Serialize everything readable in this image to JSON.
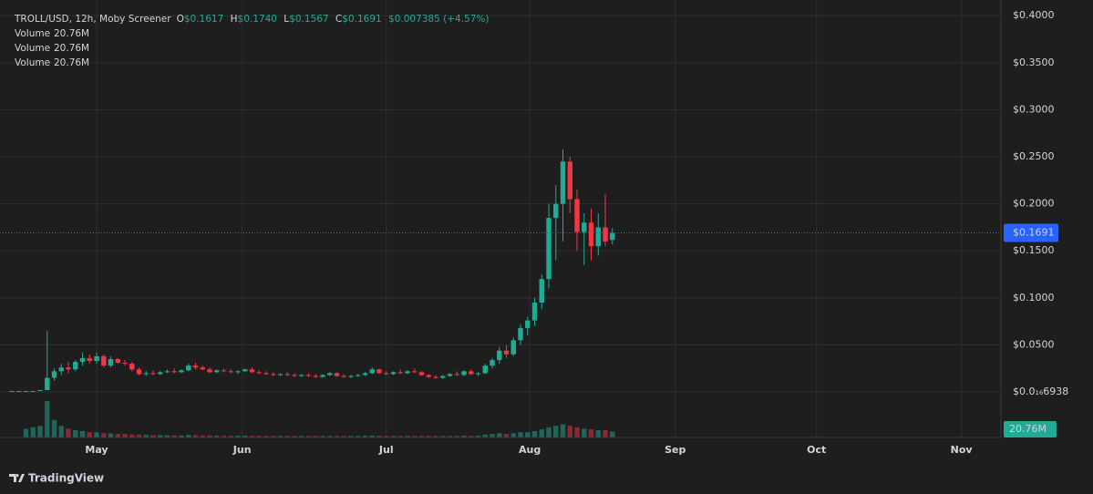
{
  "chart_data": {
    "type": "candlestick",
    "header": {
      "symbol": "TROLL/USD, 12h, Moby Screener",
      "o_label": "O",
      "o_value": "$0.1617",
      "h_label": "H",
      "h_value": "$0.1740",
      "l_label": "L",
      "l_value": "$0.1567",
      "c_label": "C",
      "c_value": "$0.1691",
      "change": "$0.007385 (+4.57%)"
    },
    "legend_rows": [
      {
        "name": "Volume",
        "value": "20.76M"
      },
      {
        "name": "Volume",
        "value": "20.76M"
      },
      {
        "name": "Volume",
        "value": "20.76M"
      }
    ],
    "up_color": "#22ab94",
    "down_color": "#f23645",
    "grid": true,
    "ylim": [
      -0.0484,
      0.4167
    ],
    "yticks": [
      {
        "value": 0.4,
        "label": "$0.4000"
      },
      {
        "value": 0.35,
        "label": "$0.3500"
      },
      {
        "value": 0.3,
        "label": "$0.3000"
      },
      {
        "value": 0.25,
        "label": "$0.2500"
      },
      {
        "value": 0.2,
        "label": "$0.2000"
      },
      {
        "value": 0.15,
        "label": "$0.1500"
      },
      {
        "value": 0.1,
        "label": "$0.1000"
      },
      {
        "value": 0.05,
        "label": "$0.0500"
      },
      {
        "value": 6.938e-17,
        "label": "$0.0₁₆6938"
      }
    ],
    "xlim": [
      -1.68,
      140.0
    ],
    "xticks": [
      {
        "value": 12.0,
        "label": "May"
      },
      {
        "value": 32.6,
        "label": "Jun"
      },
      {
        "value": 53.0,
        "label": "Jul"
      },
      {
        "value": 73.3,
        "label": "Aug"
      },
      {
        "value": 93.9,
        "label": "Sep"
      },
      {
        "value": 113.9,
        "label": "Oct"
      },
      {
        "value": 134.4,
        "label": "Nov"
      }
    ],
    "y2lim": [
      0,
      1500
    ],
    "last_price": {
      "value": 0.1691,
      "label": "$0.1691",
      "color": "#2962ff"
    },
    "last_volume": {
      "value": 20.76,
      "label": "20.76M"
    },
    "open": [
      0.001,
      0.001,
      0.001,
      0.001,
      0.001,
      0.002,
      0.015,
      0.022,
      0.026,
      0.024,
      0.032,
      0.036,
      0.033,
      0.038,
      0.028,
      0.035,
      0.031,
      0.03,
      0.024,
      0.019,
      0.02,
      0.019,
      0.021,
      0.022,
      0.021,
      0.023,
      0.028,
      0.026,
      0.024,
      0.021,
      0.023,
      0.022,
      0.021,
      0.022,
      0.024,
      0.021,
      0.02,
      0.019,
      0.018,
      0.019,
      0.018,
      0.017,
      0.018,
      0.017,
      0.016,
      0.018,
      0.02,
      0.017,
      0.016,
      0.017,
      0.018,
      0.02,
      0.024,
      0.02,
      0.019,
      0.021,
      0.02,
      0.022,
      0.021,
      0.018,
      0.016,
      0.015,
      0.017,
      0.019,
      0.018,
      0.022,
      0.019,
      0.02,
      0.028,
      0.034,
      0.044,
      0.04,
      0.055,
      0.068,
      0.076,
      0.095,
      0.12,
      0.185,
      0.2,
      0.245,
      0.205,
      0.17,
      0.18,
      0.155,
      0.175,
      0.1617
    ],
    "high": [
      0.001,
      0.001,
      0.001,
      0.001,
      0.002,
      0.065,
      0.025,
      0.03,
      0.032,
      0.034,
      0.042,
      0.04,
      0.042,
      0.04,
      0.038,
      0.036,
      0.034,
      0.032,
      0.026,
      0.022,
      0.023,
      0.022,
      0.024,
      0.025,
      0.024,
      0.03,
      0.031,
      0.028,
      0.026,
      0.024,
      0.025,
      0.024,
      0.023,
      0.025,
      0.026,
      0.023,
      0.022,
      0.021,
      0.02,
      0.021,
      0.02,
      0.019,
      0.02,
      0.019,
      0.019,
      0.021,
      0.021,
      0.019,
      0.018,
      0.019,
      0.021,
      0.026,
      0.025,
      0.022,
      0.022,
      0.024,
      0.023,
      0.025,
      0.022,
      0.019,
      0.018,
      0.018,
      0.02,
      0.022,
      0.023,
      0.024,
      0.021,
      0.03,
      0.036,
      0.048,
      0.05,
      0.058,
      0.072,
      0.08,
      0.1,
      0.125,
      0.2,
      0.22,
      0.258,
      0.25,
      0.215,
      0.19,
      0.195,
      0.19,
      0.21,
      0.174
    ],
    "low": [
      0.001,
      0.001,
      0.001,
      0.001,
      0.001,
      0.002,
      0.012,
      0.018,
      0.02,
      0.022,
      0.028,
      0.03,
      0.03,
      0.026,
      0.026,
      0.03,
      0.028,
      0.022,
      0.018,
      0.017,
      0.018,
      0.018,
      0.02,
      0.02,
      0.02,
      0.022,
      0.024,
      0.023,
      0.02,
      0.02,
      0.021,
      0.02,
      0.019,
      0.021,
      0.02,
      0.019,
      0.018,
      0.017,
      0.017,
      0.017,
      0.016,
      0.016,
      0.016,
      0.015,
      0.015,
      0.017,
      0.016,
      0.015,
      0.015,
      0.016,
      0.017,
      0.019,
      0.019,
      0.018,
      0.018,
      0.019,
      0.019,
      0.02,
      0.017,
      0.015,
      0.014,
      0.014,
      0.016,
      0.017,
      0.017,
      0.018,
      0.017,
      0.019,
      0.025,
      0.03,
      0.036,
      0.038,
      0.05,
      0.06,
      0.07,
      0.088,
      0.11,
      0.14,
      0.16,
      0.19,
      0.15,
      0.135,
      0.14,
      0.145,
      0.155,
      0.1567
    ],
    "close": [
      0.001,
      0.001,
      0.001,
      0.001,
      0.002,
      0.015,
      0.022,
      0.026,
      0.024,
      0.032,
      0.036,
      0.033,
      0.038,
      0.028,
      0.035,
      0.031,
      0.03,
      0.024,
      0.019,
      0.02,
      0.019,
      0.021,
      0.022,
      0.021,
      0.023,
      0.028,
      0.026,
      0.024,
      0.021,
      0.023,
      0.022,
      0.021,
      0.022,
      0.024,
      0.021,
      0.02,
      0.019,
      0.018,
      0.019,
      0.018,
      0.017,
      0.018,
      0.017,
      0.016,
      0.018,
      0.02,
      0.017,
      0.016,
      0.017,
      0.018,
      0.02,
      0.024,
      0.02,
      0.019,
      0.021,
      0.02,
      0.022,
      0.021,
      0.018,
      0.016,
      0.015,
      0.017,
      0.019,
      0.018,
      0.022,
      0.019,
      0.02,
      0.028,
      0.034,
      0.044,
      0.04,
      0.055,
      0.068,
      0.076,
      0.095,
      0.12,
      0.185,
      0.2,
      0.245,
      0.205,
      0.17,
      0.18,
      0.155,
      0.175,
      0.16,
      0.1691
    ],
    "volume": [
      0.5,
      0.5,
      30,
      35,
      40,
      125,
      60,
      40,
      30,
      25,
      22,
      18,
      18,
      15,
      14,
      12,
      12,
      10,
      10,
      9,
      8,
      8,
      8,
      7,
      7,
      9,
      8,
      7,
      7,
      6,
      6,
      6,
      6,
      6,
      6,
      5,
      5,
      5,
      5,
      5,
      5,
      5,
      5,
      5,
      5,
      5,
      5,
      5,
      5,
      5,
      6,
      7,
      6,
      5,
      5,
      5,
      5,
      5,
      5,
      5,
      5,
      5,
      5,
      5,
      6,
      5,
      6,
      10,
      12,
      15,
      12,
      15,
      18,
      18,
      22,
      28,
      35,
      40,
      45,
      40,
      35,
      30,
      28,
      25,
      25,
      20.76
    ],
    "brand": "TradingView"
  }
}
